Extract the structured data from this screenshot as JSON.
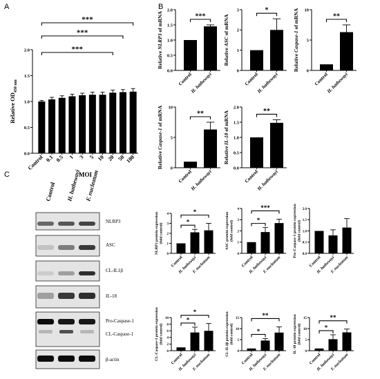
{
  "panel_labels": {
    "a": "A",
    "b": "B",
    "c": "C"
  },
  "blot": {
    "lanes": [
      "Control",
      "H. hathewayi",
      "F. nucleatum"
    ],
    "proteins": [
      "NLRP3",
      "ASC",
      "CL-IL1β",
      "IL-18",
      "Pro-Caspase-1",
      "CL-Caspase-1",
      "β-actin"
    ]
  },
  "chart_data": [
    {
      "id": "A",
      "type": "bar",
      "ylabel": "Relative OD450 nm",
      "ylabel_main": "Relative OD",
      "ylabel_sub": "450 nm",
      "xlabel": "MOI",
      "categories": [
        "Control",
        "0.1",
        "0.5",
        "1",
        "3",
        "5",
        "10",
        "20",
        "50",
        "100"
      ],
      "values": [
        1.0,
        1.04,
        1.07,
        1.1,
        1.12,
        1.13,
        1.13,
        1.17,
        1.18,
        1.19
      ],
      "errors": [
        0.02,
        0.04,
        0.04,
        0.04,
        0.04,
        0.05,
        0.05,
        0.05,
        0.05,
        0.06
      ],
      "ylim": [
        0,
        2.0
      ],
      "yticks": [
        "0.0",
        "0.5",
        "1.0",
        "1.5",
        "2.0"
      ],
      "significance": [
        "***",
        "***",
        "***"
      ]
    },
    {
      "id": "B1",
      "type": "bar",
      "ylabel": "Relative NLRP3 of mRNA",
      "ylabel_pre": "Relative ",
      "ylabel_gene": "NLRP3",
      "ylabel_post": " of mRNA",
      "categories": [
        "Control",
        "H. hathewayi"
      ],
      "values": [
        1.0,
        1.45
      ],
      "errors": [
        0.0,
        0.05
      ],
      "ylim": [
        0,
        2.0
      ],
      "yticks": [
        "0.0",
        "0.5",
        "1.0",
        "1.5",
        "2.0"
      ],
      "significance": "***"
    },
    {
      "id": "B2",
      "type": "bar",
      "ylabel": "Relative ASC of mRNA",
      "ylabel_pre": "Relative ",
      "ylabel_gene": "ASC",
      "ylabel_post": " of mRNA",
      "categories": [
        "Control",
        "H. hathewayi"
      ],
      "values": [
        1.0,
        2.0
      ],
      "errors": [
        0.0,
        0.55
      ],
      "ylim": [
        0,
        3
      ],
      "yticks": [
        "0",
        "1",
        "2",
        "3"
      ],
      "significance": "*"
    },
    {
      "id": "B3",
      "type": "bar",
      "ylabel": "Relative Caspase-1 of mRNA",
      "ylabel_pre": "Relative ",
      "ylabel_gene": "Caspase-1",
      "ylabel_post": " of mRNA",
      "categories": [
        "Control",
        "H. hathewayi"
      ],
      "values": [
        1.0,
        6.3
      ],
      "errors": [
        0.0,
        1.2
      ],
      "ylim": [
        0,
        10
      ],
      "yticks": [
        "0",
        "5",
        "10"
      ],
      "significance": "**"
    },
    {
      "id": "B4",
      "type": "bar",
      "ylabel": "Relative Caspase-1 of mRNA",
      "ylabel_pre": "Relative ",
      "ylabel_gene": "Caspase-1",
      "ylabel_post": " of mRNA",
      "categories": [
        "Control",
        "H. hathewayi"
      ],
      "values": [
        1.0,
        6.3
      ],
      "errors": [
        0.0,
        1.2
      ],
      "ylim": [
        0,
        10
      ],
      "yticks": [
        "0",
        "5",
        "10"
      ],
      "significance": "**"
    },
    {
      "id": "B5",
      "type": "bar",
      "ylabel": "Relative IL-18 of mRNA",
      "ylabel_pre": "Relative ",
      "ylabel_gene": "IL-18",
      "ylabel_post": " of mRNA",
      "categories": [
        "Control",
        "H. hathewayi"
      ],
      "values": [
        1.0,
        1.48
      ],
      "errors": [
        0.0,
        0.1
      ],
      "ylim": [
        0,
        2.0
      ],
      "yticks": [
        "0.0",
        "0.5",
        "1.0",
        "1.5",
        "2.0"
      ],
      "significance": "**"
    },
    {
      "id": "C1",
      "type": "bar",
      "ylabel": "NLRP3 protein expression (fold control)",
      "ylabel_l1": "NLRP3 protein expression",
      "ylabel_l2": "(fold control)",
      "categories": [
        "Control",
        "H. hathewayi",
        "F. nucleatum"
      ],
      "values": [
        1.0,
        2.1,
        2.3
      ],
      "errors": [
        0.0,
        0.3,
        0.7
      ],
      "ylim": [
        0,
        4
      ],
      "yticks": [
        "0",
        "1",
        "2",
        "3",
        "4"
      ],
      "significance": [
        "*",
        "*"
      ]
    },
    {
      "id": "C2",
      "type": "bar",
      "ylabel": "ASC protein expression (fold control)",
      "ylabel_l1": "ASC protein expression",
      "ylabel_l2": "(fold control)",
      "categories": [
        "Control",
        "H. hathewayi",
        "F. nucleatum"
      ],
      "values": [
        1.0,
        1.9,
        2.7
      ],
      "errors": [
        0.0,
        0.4,
        0.35
      ],
      "ylim": [
        0,
        4
      ],
      "yticks": [
        "0",
        "1",
        "2",
        "3",
        "4"
      ],
      "significance": [
        "*",
        "***"
      ]
    },
    {
      "id": "C3",
      "type": "bar",
      "ylabel": "Pro-Caspase-1 protein expression (fold control)",
      "ylabel_l1": "Pro-Caspase-1 protein expression",
      "ylabel_l2": "(fold control)",
      "categories": [
        "Control",
        "H. hathewayi",
        "F. nucleatum"
      ],
      "values": [
        1.0,
        0.8,
        1.15
      ],
      "errors": [
        0.0,
        0.25,
        0.4
      ],
      "ylim": [
        0,
        2.0
      ],
      "yticks": [
        "0.0",
        "0.5",
        "1.0",
        "1.5",
        "2.0"
      ],
      "significance": []
    },
    {
      "id": "C4",
      "type": "bar",
      "ylabel": "CL-Caspase-1 protein expression (fold control)",
      "ylabel_l1": "CL-Caspase-1 protein expression",
      "ylabel_l2": "(fold control)",
      "categories": [
        "Control",
        "H. hathewayi",
        "F. nucleatum"
      ],
      "values": [
        1.0,
        5.5,
        6.0
      ],
      "errors": [
        0.0,
        1.6,
        2.2
      ],
      "ylim": [
        0,
        10
      ],
      "yticks": [
        "0",
        "2",
        "4",
        "6",
        "8",
        "10"
      ],
      "significance": [
        "*",
        "*"
      ]
    },
    {
      "id": "C5",
      "type": "bar",
      "ylabel": "CL-IL1β protein expression (fold control)",
      "ylabel_l1": "CL-IL1β protein expression",
      "ylabel_l2": "(fold control)",
      "categories": [
        "Control",
        "H. hathewayi",
        "F. nucleatum"
      ],
      "values": [
        1.0,
        4.6,
        8.2
      ],
      "errors": [
        0.0,
        0.9,
        2.6
      ],
      "ylim": [
        0,
        15
      ],
      "yticks": [
        "0",
        "5",
        "10",
        "15"
      ],
      "significance": [
        "*",
        "**"
      ]
    },
    {
      "id": "C6",
      "type": "bar",
      "ylabel": "IL-18 protein expression (fold control)",
      "ylabel_l1": "IL-18 protein expression",
      "ylabel_l2": "(fold control)",
      "categories": [
        "Control",
        "H. hathewayi",
        "F. nucleatum"
      ],
      "values": [
        1.0,
        5.2,
        8.3
      ],
      "errors": [
        0.0,
        2.0,
        1.5
      ],
      "ylim": [
        0,
        15
      ],
      "yticks": [
        "0",
        "5",
        "10",
        "15"
      ],
      "significance": [
        "*",
        "**"
      ]
    }
  ]
}
